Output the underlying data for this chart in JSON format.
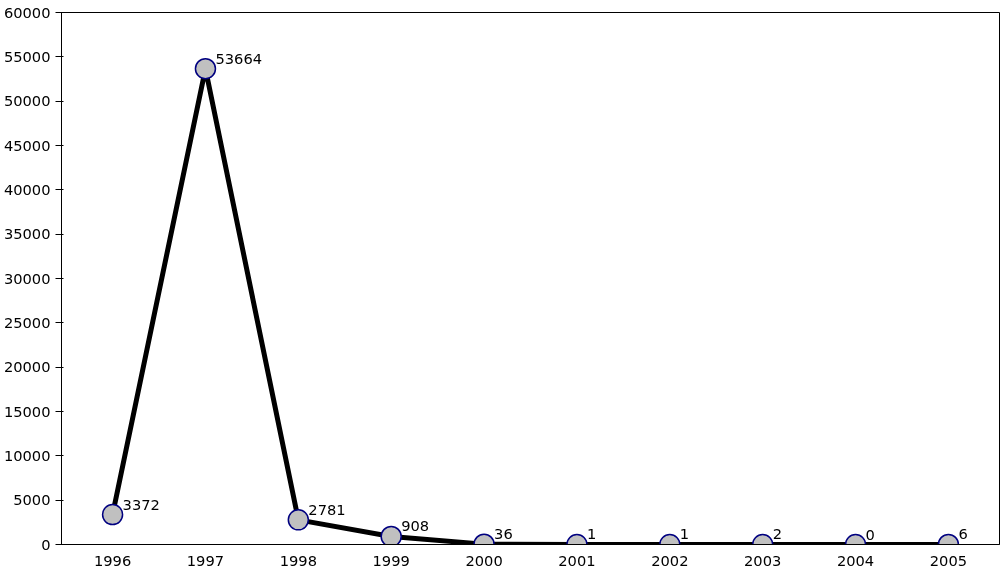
{
  "chart_data": {
    "type": "line",
    "categories": [
      "1996",
      "1997",
      "1998",
      "1999",
      "2000",
      "2001",
      "2002",
      "2003",
      "2004",
      "2005"
    ],
    "series": [
      {
        "color": "#000000",
        "values": [
          3372,
          53664,
          2781,
          908,
          36,
          1,
          1,
          2,
          0,
          6
        ]
      }
    ],
    "ylim": [
      0,
      60000
    ],
    "yticks": [
      0,
      5000,
      10000,
      15000,
      20000,
      25000,
      30000,
      35000,
      40000,
      45000,
      50000,
      55000,
      60000
    ],
    "data_labels": true,
    "marker": "circle",
    "line_style": "solid"
  }
}
